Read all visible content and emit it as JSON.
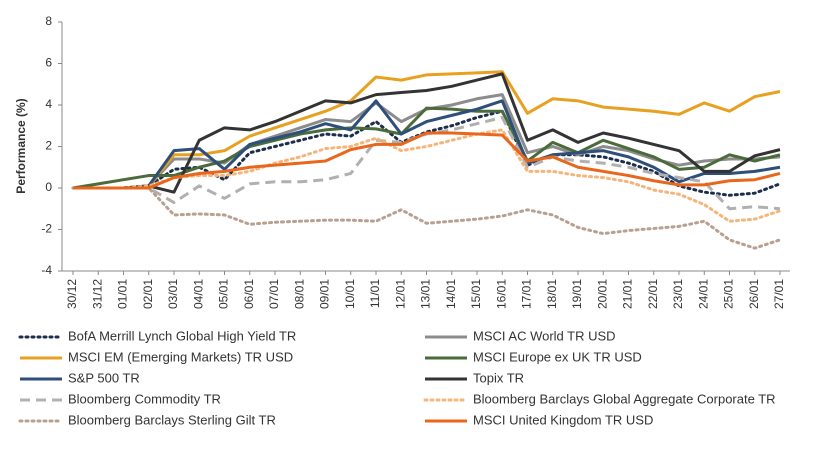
{
  "chart_data": {
    "type": "line",
    "y_label": "Performance (%)",
    "categories": [
      "30/12",
      "31/12",
      "01/01",
      "02/01",
      "03/01",
      "04/01",
      "05/01",
      "06/01",
      "07/01",
      "08/01",
      "09/01",
      "10/01",
      "11/01",
      "12/01",
      "13/01",
      "14/01",
      "15/01",
      "16/01",
      "17/01",
      "18/01",
      "19/01",
      "20/01",
      "21/01",
      "22/01",
      "23/01",
      "24/01",
      "25/01",
      "26/01",
      "27/01"
    ],
    "ylim": [
      -4,
      8
    ],
    "yticks": [
      -4,
      -2,
      0,
      2,
      4,
      6,
      8
    ],
    "grid": false,
    "series": [
      {
        "name": "BofA Merrill Lynch Global High Yield TR",
        "color": "#1c2e4a",
        "dash": "dotted",
        "values": [
          0,
          0,
          0,
          0.1,
          0.9,
          1.0,
          0.4,
          1.7,
          2.0,
          2.3,
          2.6,
          2.5,
          3.2,
          2.2,
          2.7,
          3.0,
          3.4,
          3.7,
          1.1,
          1.6,
          1.6,
          1.5,
          1.2,
          0.8,
          0.1,
          -0.2,
          -0.35,
          -0.25,
          0.2
        ]
      },
      {
        "name": "MSCI AC World TR USD",
        "color": "#8c8c8c",
        "dash": "solid",
        "values": [
          0,
          0,
          0,
          0.1,
          1.4,
          1.4,
          1.2,
          2.1,
          2.5,
          2.9,
          3.3,
          3.2,
          4.1,
          3.2,
          3.8,
          4.0,
          4.3,
          4.5,
          1.7,
          2.0,
          1.6,
          2.0,
          1.8,
          1.4,
          1.1,
          1.3,
          1.4,
          1.4,
          1.5
        ]
      },
      {
        "name": "MSCI EM (Emerging Markets) TR USD",
        "color": "#e8a020",
        "dash": "solid",
        "values": [
          0,
          0,
          0,
          0.1,
          1.6,
          1.6,
          1.8,
          2.5,
          2.9,
          3.3,
          3.7,
          4.2,
          5.35,
          5.2,
          5.45,
          5.5,
          5.55,
          5.6,
          3.6,
          4.3,
          4.2,
          3.9,
          3.8,
          3.7,
          3.55,
          4.1,
          3.7,
          4.4,
          4.65
        ]
      },
      {
        "name": "MSCI Europe ex UK TR USD",
        "color": "#4a6b3a",
        "dash": "solid",
        "values": [
          0,
          0.2,
          0.4,
          0.6,
          0.6,
          1.0,
          1.3,
          2.0,
          2.3,
          2.6,
          2.8,
          2.9,
          2.85,
          2.6,
          3.85,
          3.8,
          3.7,
          3.7,
          1.3,
          2.2,
          1.7,
          2.3,
          1.9,
          1.5,
          0.9,
          1.0,
          1.6,
          1.3,
          1.6
        ]
      },
      {
        "name": "S&P 500 TR",
        "color": "#2e4f79",
        "dash": "solid",
        "values": [
          0,
          0,
          0,
          0.1,
          1.8,
          1.9,
          0.9,
          2.1,
          2.4,
          2.7,
          3.1,
          2.8,
          4.2,
          2.6,
          3.2,
          3.5,
          3.8,
          4.2,
          1.2,
          1.6,
          1.7,
          1.8,
          1.5,
          1.0,
          0.3,
          0.7,
          0.7,
          0.8,
          1.0
        ]
      },
      {
        "name": "Topix TR",
        "color": "#333333",
        "dash": "solid",
        "values": [
          0,
          0,
          0,
          0.1,
          -0.2,
          2.3,
          2.9,
          2.8,
          3.2,
          3.7,
          4.2,
          4.1,
          4.5,
          4.6,
          4.7,
          4.9,
          5.2,
          5.5,
          2.3,
          2.8,
          2.2,
          2.65,
          2.4,
          2.1,
          1.8,
          0.8,
          0.8,
          1.55,
          1.85
        ]
      },
      {
        "name": "Bloomberg Commodity TR",
        "color": "#b0b0b0",
        "dash": "dashed",
        "values": [
          0,
          0,
          0,
          0,
          -0.7,
          0.1,
          -0.5,
          0.2,
          0.3,
          0.3,
          0.4,
          0.7,
          2.3,
          2.2,
          2.6,
          2.8,
          3.1,
          3.4,
          1.0,
          1.5,
          1.3,
          1.2,
          1.0,
          0.7,
          0.5,
          0.3,
          -1.0,
          -0.9,
          -1.0
        ]
      },
      {
        "name": "Bloomberg Barclays Global Aggregate Corporate TR",
        "color": "#f5b57a",
        "dash": "dotted",
        "values": [
          0,
          0,
          0,
          0.1,
          0.5,
          0.6,
          0.6,
          0.8,
          1.2,
          1.5,
          1.9,
          2.0,
          2.4,
          1.8,
          2.0,
          2.3,
          2.6,
          2.8,
          0.8,
          0.8,
          0.6,
          0.5,
          0.3,
          -0.1,
          -0.3,
          -0.8,
          -1.6,
          -1.5,
          -1.1
        ]
      },
      {
        "name": "Bloomberg Barclays Sterling Gilt TR",
        "color": "#b8a090",
        "dash": "dotted",
        "values": [
          0,
          0,
          0,
          0,
          -1.3,
          -1.25,
          -1.3,
          -1.75,
          -1.65,
          -1.6,
          -1.55,
          -1.55,
          -1.6,
          -1.05,
          -1.7,
          -1.6,
          -1.5,
          -1.35,
          -1.05,
          -1.3,
          -1.9,
          -2.2,
          -2.05,
          -1.95,
          -1.85,
          -1.6,
          -2.5,
          -2.9,
          -2.5
        ]
      },
      {
        "name": "MSCI United Kingdom TR USD",
        "color": "#e8671c",
        "dash": "solid",
        "values": [
          0,
          0,
          0,
          0,
          0.5,
          0.7,
          0.8,
          1.0,
          1.1,
          1.2,
          1.3,
          1.85,
          2.1,
          2.1,
          2.65,
          2.65,
          2.6,
          2.55,
          1.3,
          1.5,
          1.0,
          0.8,
          0.6,
          0.35,
          0.15,
          0.15,
          0.35,
          0.4,
          0.7
        ]
      }
    ]
  }
}
